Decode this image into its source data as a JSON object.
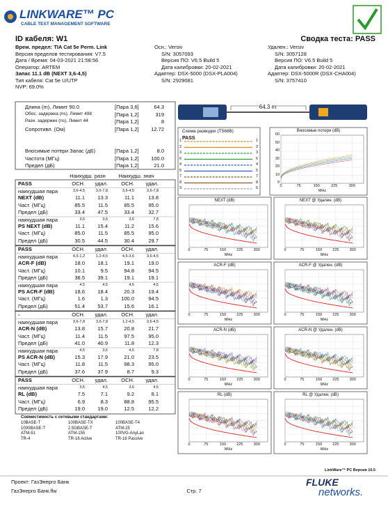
{
  "header": {
    "logo": "LINKWARE™ PC",
    "tagline": "CABLE TEST MANAGEMENT SOFTWARE"
  },
  "title": {
    "cable_id": "ID кабеля: W1",
    "summary": "Сводка теста: PASS"
  },
  "info": {
    "left": [
      "Врем. предел: TIA Cat 5e Perm. Link",
      "Версия пределов тестирования: V7.5",
      "Дата / Время: 04-03-2021 21:58:56",
      "Оператор: ARTEM",
      "Запас 11.1 dB (NEXT 3,6-4,5)",
      "Тип кабеля: Cat 5e U/UTP",
      "NVP: 69.0%"
    ],
    "main": [
      "Осн.: Versiv",
      "S/N: 3057093",
      "Версия ПО: V6.5 Build 5",
      "Дата калибровки: 20-02-2021",
      "Адаптер: DSX-5000 (DSX-PLA004)",
      "S/N: 2929081"
    ],
    "remote": [
      "Удален.: Versiv",
      "S/N: 3057128",
      "Версия ПО: V6.5 Build 5",
      "Дата калибровки: 20-02-2021",
      "Адаптер: DSX-5000R (DSX-CHA004)",
      "S/N: 3757410"
    ]
  },
  "measurements": [
    [
      "Длина (m), Лимит 90.0",
      "[Пара 3,6]",
      "64.3"
    ],
    [
      "Обоc. задержка (ns), Лимит 498",
      "[Пара 1,2]",
      "319"
    ],
    [
      "Разн. задержек (ns), Лимит 44",
      "[Пара 1,2]",
      "8"
    ],
    [
      "Сопротивл. (Ом)",
      "[Пара 1,2]",
      "12.72"
    ],
    [
      "Вносимые потери Запас (дБ)",
      "[Пара 1,2]",
      "8.0"
    ],
    [
      "Частота (МГц)",
      "[Пара 1,2]",
      "100.0"
    ],
    [
      "Предел (дБ)",
      "[Пара 1,2]",
      "21.0"
    ]
  ],
  "table_headers": [
    "Наихудш. разн",
    "Наихудш. знач"
  ],
  "sections": [
    {
      "rows": [
        [
          "PASS",
          "ОСН.",
          "удал.",
          "ОСН.",
          "удал."
        ],
        [
          "наихудшая пара",
          "3,6-4,5",
          "3,6-7,8",
          "3,6-4,5",
          "3,6-7,8"
        ],
        [
          "NEXT (dB)",
          "11.1",
          "13.3",
          "11.1",
          "13.8"
        ],
        [
          "Част. (МГц)",
          "85.5",
          "11.5",
          "85.5",
          "95.0"
        ],
        [
          "Предел (дБ)",
          "33.4",
          "47.5",
          "33.4",
          "32.7"
        ],
        [
          "наихудшая пара",
          "3,6",
          "3,6",
          "3,6",
          "7,8"
        ],
        [
          "PS NEXT (dB)",
          "11.1",
          "15.4",
          "11.2",
          "15.6"
        ],
        [
          "Част. (МГц)",
          "85.0",
          "11.5",
          "85.5",
          "95.0"
        ],
        [
          "Предел (дБ)",
          "30.5",
          "44.5",
          "30.4",
          "29.7"
        ]
      ]
    },
    {
      "rows": [
        [
          "PASS",
          "ОСН.",
          "удал.",
          "ОСН.",
          "удал."
        ],
        [
          "наихудшая пара",
          "4,5-1,2",
          "1,2-4,5",
          "4,5-3,6",
          "3,6-4,5"
        ],
        [
          "ACR-F (dB)",
          "18.0",
          "18.1",
          "19.1",
          "19.0"
        ],
        [
          "Част. (МГц)",
          "10.1",
          "9.5",
          "94.8",
          "94.5"
        ],
        [
          "Предел (дБ)",
          "38.5",
          "39.1",
          "19.1",
          "19.1"
        ],
        [
          "наихудшая пара",
          "4,5",
          "4,5",
          "4,5",
          "4,5"
        ],
        [
          "PS ACR-F (dB)",
          "18.6",
          "18.4",
          "20.3",
          "19.4"
        ],
        [
          "Част. (МГц)",
          "1.6",
          "1.3",
          "100.0",
          "94.5"
        ],
        [
          "Предел (дБ)",
          "51.4",
          "53.7",
          "15.6",
          "16.1"
        ]
      ]
    },
    {
      "rows": [
        [
          "-",
          "ОСН.",
          "удал.",
          "ОСН.",
          "удал."
        ],
        [
          "наихудшая пара",
          "3,6-7,8",
          "3,6-7,8",
          "1,2-4,5",
          "3,6-4,5"
        ],
        [
          "ACR-N (dB)",
          "13.8",
          "15.7",
          "20.8",
          "21.7"
        ],
        [
          "Част. (МГц)",
          "11.4",
          "11.5",
          "97.5",
          "95.0"
        ],
        [
          "Предел (дБ)",
          "41.0",
          "40.9",
          "11.8",
          "12.3"
        ],
        [
          "наихудшая пара",
          "4,5",
          "3,6",
          "4,5",
          "7,8"
        ],
        [
          "PS ACR-N (dB)",
          "15.3",
          "17.9",
          "21.0",
          "23.5"
        ],
        [
          "Част. (МГц)",
          "11.8",
          "11.5",
          "98.3",
          "95.0"
        ],
        [
          "Предел (дБ)",
          "37.6",
          "37.9",
          "8.7",
          "9.3"
        ]
      ]
    },
    {
      "rows": [
        [
          "PASS",
          "ОСН.",
          "удал.",
          "ОСН.",
          "удал."
        ],
        [
          "наихудшая пара",
          "3,6",
          "4,5",
          "3,6",
          "4,5"
        ],
        [
          "RL (dB)",
          "7.5",
          "7.1",
          "9.2",
          "8.1"
        ],
        [
          "Част. (МГц)",
          "6.9",
          "8.3",
          "88.8",
          "95.5"
        ],
        [
          "Предел (дБ)",
          "19.0",
          "19.0",
          "12.5",
          "12.2"
        ]
      ]
    }
  ],
  "compat": {
    "title": "Совместимость с сетевыми стандартами:",
    "items": [
      [
        "10BASE-T",
        "100BASE-TX",
        "100BASE-T4"
      ],
      [
        "1000BASE-T",
        "2.5GBASE-T",
        "ATM-25"
      ],
      [
        "ATM-51",
        "ATM-155",
        "100VG-AnyLan"
      ],
      [
        "TR-4",
        "TR-16 Active",
        "TR-16 Passive"
      ]
    ]
  },
  "cable": {
    "length": "64.3 m"
  },
  "wiremap": {
    "title": "Схема разводки (T568B)",
    "result": "PASS",
    "pins": [
      "1",
      "2",
      "3",
      "6",
      "4",
      "5",
      "7",
      "8",
      "S"
    ]
  },
  "graphs": [
    {
      "title": "Вносимые потери (dB)",
      "yticks": [
        "60",
        "50",
        "40",
        "30",
        "20",
        "10",
        "0"
      ]
    },
    {
      "title": "NEXT (dB)"
    },
    {
      "title": "NEXT @ Удален. (dB)"
    },
    {
      "title": "ACR-F (dB)"
    },
    {
      "title": "ACR-F @ Удален. (dB)"
    },
    {
      "title": "ACR-N (dB)"
    },
    {
      "title": "ACR-N @ Удален. (dB)"
    },
    {
      "title": "RL (dB)"
    },
    {
      "title": "RL @ Удален. (dB)"
    }
  ],
  "graph_xticks": [
    "0",
    "75",
    "150",
    "225",
    "300"
  ],
  "graph_xlabel": "MHz",
  "footer": {
    "version": "LinkWare™ PC Версия 10.5",
    "project": "Проект: ГазЭнерго Банк",
    "file": "ГазЭнерго Банк.flw",
    "page": "Стр. 7",
    "brand1": "FLUKE",
    "brand2": "networks."
  }
}
